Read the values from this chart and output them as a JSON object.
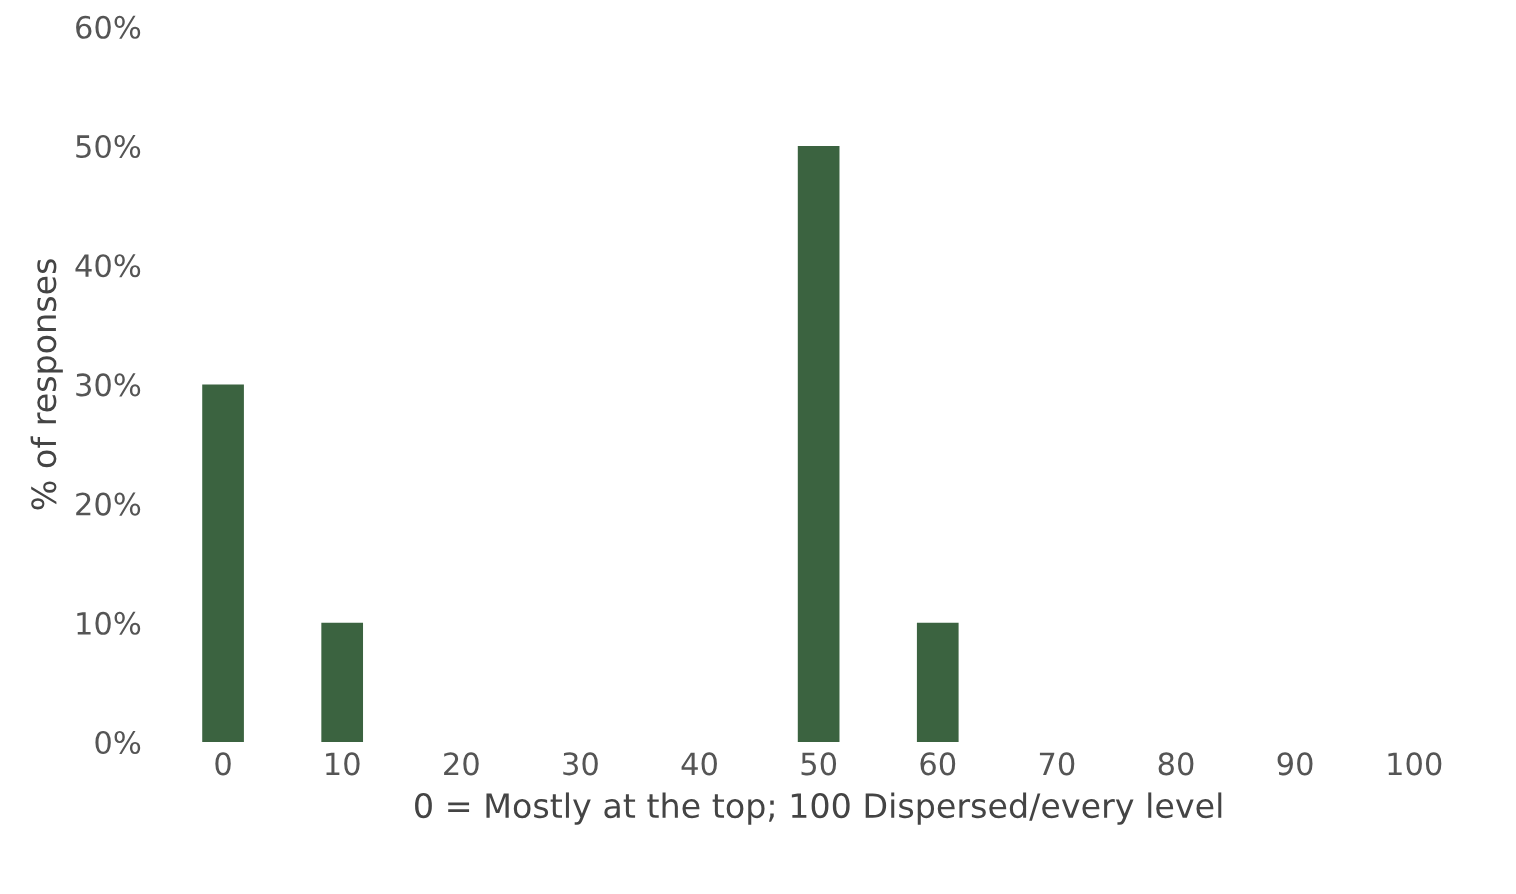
{
  "chart_data": {
    "type": "bar",
    "xlabel": "0 = Mostly at the top; 100 Dispersed/every level",
    "ylabel": "% of responses",
    "categories": [
      "0",
      "10",
      "20",
      "30",
      "40",
      "50",
      "60",
      "70",
      "80",
      "90",
      "100"
    ],
    "values": [
      30,
      10,
      0,
      0,
      0,
      50,
      10,
      0,
      0,
      0,
      0
    ],
    "color": "#3b6340",
    "ylim": [
      0,
      60
    ],
    "yticks": [
      {
        "value": 0,
        "label": "0%"
      },
      {
        "value": 10,
        "label": "10%"
      },
      {
        "value": 20,
        "label": "20%"
      },
      {
        "value": 30,
        "label": "30%"
      },
      {
        "value": 40,
        "label": "40%"
      },
      {
        "value": 50,
        "label": "50%"
      },
      {
        "value": 60,
        "label": "60%"
      }
    ],
    "grid": false,
    "legend": false
  }
}
